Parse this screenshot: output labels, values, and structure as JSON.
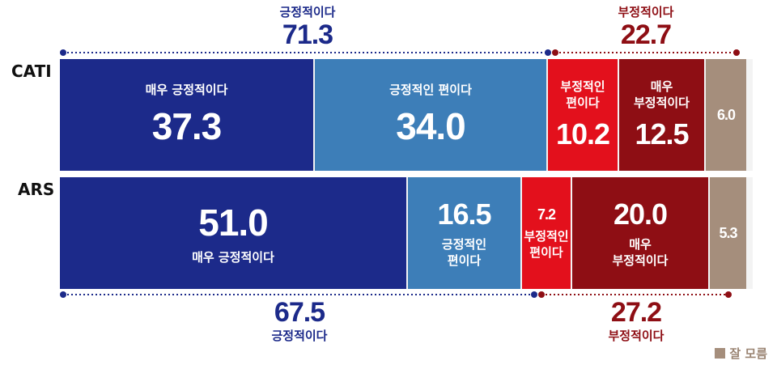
{
  "colors": {
    "very_positive": "#1c2a8a",
    "positive": "#3d7eb8",
    "negative": "#e3101c",
    "very_negative": "#8e0e14",
    "dont_know": "#a58e7c",
    "pos_total": "#1c2a8a",
    "neg_total": "#8e0e14"
  },
  "chart_data": {
    "type": "bar",
    "orientation": "horizontal-stacked",
    "categories": [
      "CATI",
      "ARS"
    ],
    "series": [
      {
        "name": "매우 긍정적이다",
        "values": [
          37.3,
          51.0
        ]
      },
      {
        "name": "긍정적인 편이다",
        "values": [
          34.0,
          16.5
        ]
      },
      {
        "name": "부정적인 편이다",
        "values": [
          10.2,
          7.2
        ]
      },
      {
        "name": "매우 부정적이다",
        "values": [
          12.5,
          20.0
        ]
      },
      {
        "name": "잘 모름",
        "values": [
          6.0,
          5.3
        ]
      }
    ],
    "totals": {
      "CATI": {
        "positive": {
          "label": "긍정적이다",
          "value": "71.3"
        },
        "negative": {
          "label": "부정적이다",
          "value": "22.7"
        }
      },
      "ARS": {
        "positive": {
          "label": "긍정적이다",
          "value": "67.5"
        },
        "negative": {
          "label": "부정적이다",
          "value": "27.2"
        }
      }
    },
    "legend": {
      "label": "잘 모름",
      "position": "bottom-right"
    }
  },
  "bars": {
    "cati": {
      "label": "CATI",
      "segments": [
        {
          "label": "매우 긍정적이다",
          "value": "37.3",
          "num": 37.3,
          "color_key": "very_positive",
          "label_first": true
        },
        {
          "label": "긍정적인 편이다",
          "value": "34.0",
          "num": 34.0,
          "color_key": "positive",
          "label_first": true
        },
        {
          "label": "부정적인\n편이다",
          "value": "10.2",
          "num": 10.2,
          "color_key": "negative",
          "label_first": true
        },
        {
          "label": "매우\n부정적이다",
          "value": "12.5",
          "num": 12.5,
          "color_key": "very_negative",
          "label_first": true
        },
        {
          "label": "",
          "value": "6.0",
          "num": 6.0,
          "color_key": "dont_know",
          "label_first": true
        }
      ]
    },
    "ars": {
      "label": "ARS",
      "segments": [
        {
          "label": "매우 긍정적이다",
          "value": "51.0",
          "num": 51.0,
          "color_key": "very_positive",
          "label_first": false
        },
        {
          "label": "긍정적인\n편이다",
          "value": "16.5",
          "num": 16.5,
          "color_key": "positive",
          "label_first": false
        },
        {
          "label": "부정적인\n편이다",
          "value": "7.2",
          "num": 7.2,
          "color_key": "negative",
          "label_first": false
        },
        {
          "label": "매우\n부정적이다",
          "value": "20.0",
          "num": 20.0,
          "color_key": "very_negative",
          "label_first": false
        },
        {
          "label": "",
          "value": "5.3",
          "num": 5.3,
          "color_key": "dont_know",
          "label_first": false
        }
      ]
    }
  }
}
